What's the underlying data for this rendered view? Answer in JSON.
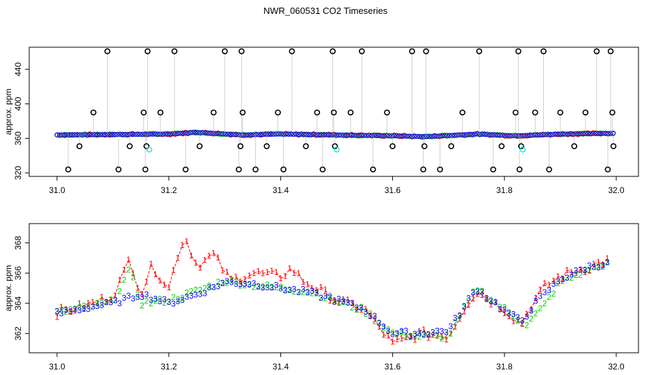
{
  "title": "NWR_060531  CO2 Timeseries",
  "colors": {
    "red": "#ff0000",
    "green": "#00cc00",
    "blue": "#0000ff",
    "cyan": "#00e5e5",
    "black": "#000000",
    "gray": "#a0a0a0"
  },
  "chart_data": [
    {
      "type": "scatter",
      "ylabel": "approx. ppm",
      "xlabel": "",
      "xlim": [
        31.0,
        32.0
      ],
      "ylim": [
        320,
        460
      ],
      "xticks": [
        "31.0",
        "31.2",
        "31.4",
        "31.6",
        "31.8",
        "32.0"
      ],
      "yticks": [
        "320",
        "360",
        "400",
        "440"
      ],
      "baseline": {
        "x": [
          31.0,
          31.1,
          31.2,
          31.25,
          31.33,
          31.4,
          31.5,
          31.6,
          31.66,
          31.75,
          31.82,
          31.9,
          32.0
        ],
        "y": [
          364,
          364.5,
          365,
          367,
          364,
          365,
          364,
          363,
          362,
          365,
          363,
          365,
          366
        ]
      },
      "spike_points": {
        "x": [
          31.02,
          31.04,
          31.065,
          31.09,
          31.11,
          31.13,
          31.155,
          31.158,
          31.16,
          31.162,
          31.185,
          31.21,
          31.23,
          31.255,
          31.28,
          31.3,
          31.325,
          31.328,
          31.33,
          31.332,
          31.355,
          31.375,
          31.395,
          31.405,
          31.42,
          31.445,
          31.465,
          31.475,
          31.493,
          31.495,
          31.497,
          31.525,
          31.545,
          31.565,
          31.59,
          31.6,
          31.635,
          31.655,
          31.657,
          31.66,
          31.685,
          31.705,
          31.725,
          31.755,
          31.78,
          31.795,
          31.82,
          31.825,
          31.827,
          31.83,
          31.855,
          31.87,
          31.88,
          31.9,
          31.925,
          31.945,
          31.965,
          31.985,
          31.99,
          31.993,
          31.995
        ],
        "y": [
          324,
          351,
          390,
          461,
          324,
          351,
          390,
          324,
          351,
          461,
          390,
          461,
          324,
          351,
          390,
          461,
          324,
          351,
          461,
          390,
          324,
          351,
          390,
          324,
          461,
          351,
          390,
          324,
          461,
          390,
          351,
          390,
          461,
          324,
          390,
          351,
          461,
          324,
          351,
          461,
          324,
          351,
          390,
          461,
          324,
          351,
          390,
          461,
          324,
          351,
          390,
          461,
          324,
          390,
          351,
          390,
          461,
          324,
          461,
          390,
          351
        ]
      },
      "cyan_points": {
        "x": [
          31.165,
          31.5,
          31.833
        ],
        "y": [
          347,
          347,
          347
        ]
      }
    },
    {
      "type": "line",
      "ylabel": "approx. ppm",
      "xlabel": "",
      "xlim": [
        31.0,
        32.0
      ],
      "ylim": [
        361,
        369
      ],
      "xticks": [
        "31.0",
        "31.2",
        "31.4",
        "31.6",
        "31.8",
        "32.0"
      ],
      "yticks": [
        "362",
        "364",
        "366",
        "368"
      ],
      "series": [
        {
          "name": "1",
          "x": [
            31.0,
            31.05,
            31.1,
            31.12,
            31.13,
            31.15,
            31.17,
            31.2,
            31.22,
            31.23,
            31.25,
            31.28,
            31.31,
            31.35,
            31.4,
            31.42,
            31.44,
            31.5,
            31.55,
            31.6,
            31.65,
            31.7,
            31.73,
            31.75,
            31.77,
            31.8,
            31.83,
            31.85,
            31.87,
            31.9,
            31.95,
            31.98
          ],
          "y": [
            363.4,
            363.8,
            364.5,
            366.0,
            367.0,
            364.6,
            366.5,
            365.0,
            367.8,
            368.3,
            366.5,
            367.2,
            365.5,
            366.0,
            365.8,
            366.3,
            365.5,
            364.2,
            363.6,
            361.3,
            362.0,
            361.8,
            363.8,
            364.8,
            364.3,
            363.6,
            362.6,
            364.0,
            365.0,
            365.8,
            366.4,
            366.8
          ]
        },
        {
          "name": "2",
          "x": [
            31.0,
            31.05,
            31.1,
            31.13,
            31.15,
            31.2,
            31.25,
            31.3,
            31.35,
            31.4,
            31.45,
            31.5,
            31.55,
            31.6,
            31.65,
            31.7,
            31.75,
            31.8,
            31.84,
            31.87,
            31.9,
            31.95,
            31.98
          ],
          "y": [
            363.4,
            363.7,
            364.1,
            366.2,
            364.0,
            364.2,
            364.8,
            365.5,
            365.2,
            365.0,
            364.8,
            364.2,
            363.5,
            362.0,
            361.8,
            361.8,
            365.0,
            363.6,
            362.6,
            363.8,
            365.4,
            366.2,
            366.6
          ]
        },
        {
          "name": "3",
          "x": [
            31.0,
            31.05,
            31.1,
            31.15,
            31.2,
            31.25,
            31.3,
            31.35,
            31.4,
            31.45,
            31.5,
            31.55,
            31.6,
            31.65,
            31.7,
            31.75,
            31.8,
            31.83,
            31.86,
            31.9,
            31.95,
            31.98
          ],
          "y": [
            363.3,
            363.7,
            364.0,
            364.6,
            364.0,
            364.6,
            365.4,
            365.3,
            365.0,
            364.7,
            364.2,
            363.6,
            362.0,
            362.0,
            362.2,
            365.0,
            363.5,
            362.8,
            364.2,
            365.6,
            366.4,
            366.6
          ]
        }
      ]
    }
  ]
}
